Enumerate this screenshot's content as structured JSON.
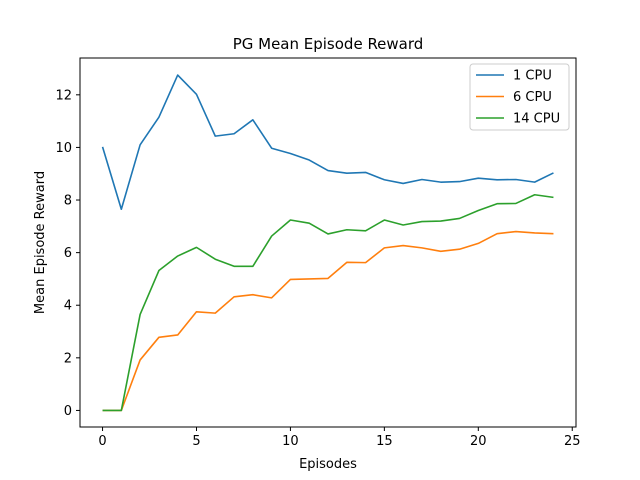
{
  "chart_data": {
    "type": "line",
    "title": "PG Mean Episode Reward",
    "xlabel": "Episodes",
    "ylabel": "Mean Episode Reward",
    "xlim": [
      -1.2,
      25.2
    ],
    "ylim": [
      -0.63,
      13.4
    ],
    "xticks": [
      0,
      5,
      10,
      15,
      20,
      25
    ],
    "yticks": [
      0,
      2,
      4,
      6,
      8,
      10,
      12
    ],
    "grid": false,
    "legend_position": "top-right",
    "x": [
      0,
      1,
      2,
      3,
      4,
      5,
      6,
      7,
      8,
      9,
      10,
      11,
      12,
      13,
      14,
      15,
      16,
      17,
      18,
      19,
      20,
      21,
      22,
      23,
      24
    ],
    "series": [
      {
        "name": "1 CPU",
        "color": "#1f77b4",
        "values": [
          10.02,
          7.65,
          10.1,
          11.15,
          12.75,
          12.02,
          10.43,
          10.52,
          11.05,
          9.97,
          9.77,
          9.52,
          9.12,
          9.02,
          9.05,
          8.77,
          8.63,
          8.78,
          8.68,
          8.7,
          8.83,
          8.77,
          8.78,
          8.68,
          9.03
        ]
      },
      {
        "name": "6 CPU",
        "color": "#ff7f0e",
        "values": [
          0.0,
          0.0,
          1.92,
          2.78,
          2.87,
          3.75,
          3.7,
          4.32,
          4.4,
          4.28,
          4.98,
          5.0,
          5.02,
          5.63,
          5.62,
          6.18,
          6.27,
          6.18,
          6.05,
          6.13,
          6.35,
          6.72,
          6.8,
          6.75,
          6.72
        ]
      },
      {
        "name": "14 CPU",
        "color": "#2ca02c",
        "values": [
          0.0,
          0.0,
          3.65,
          5.32,
          5.87,
          6.2,
          5.75,
          5.48,
          5.48,
          6.63,
          7.24,
          7.12,
          6.71,
          6.87,
          6.83,
          7.24,
          7.05,
          7.18,
          7.2,
          7.3,
          7.6,
          7.86,
          7.87,
          8.2,
          8.1
        ]
      }
    ]
  }
}
